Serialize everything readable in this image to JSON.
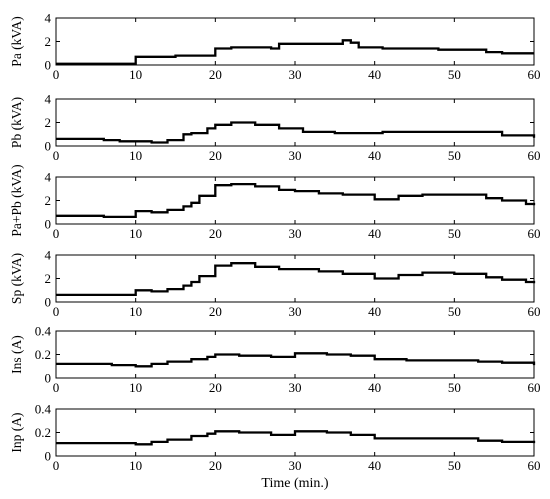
{
  "chart_data": [
    {
      "type": "line",
      "ylabel": "Pa (kVA)",
      "xlabel": "",
      "xlim": [
        0,
        60
      ],
      "ylim": [
        0,
        4
      ],
      "xticks": [
        "0",
        "10",
        "20",
        "30",
        "40",
        "50",
        "60"
      ],
      "yticks": [
        "0",
        "2",
        "4"
      ],
      "x": [
        0,
        9,
        10,
        14,
        15,
        20,
        22,
        27,
        28,
        34,
        36,
        37,
        38,
        41,
        46,
        48,
        54,
        56,
        60
      ],
      "y": [
        0.1,
        0.1,
        0.7,
        0.7,
        0.8,
        1.4,
        1.5,
        1.4,
        1.8,
        1.8,
        2.1,
        1.9,
        1.5,
        1.4,
        1.4,
        1.3,
        1.1,
        1.0,
        1.0
      ]
    },
    {
      "type": "line",
      "ylabel": "Pb (kVA)",
      "xlabel": "",
      "xlim": [
        0,
        60
      ],
      "ylim": [
        0,
        4
      ],
      "xticks": [
        "0",
        "10",
        "20",
        "30",
        "40",
        "50",
        "60"
      ],
      "yticks": [
        "0",
        "2",
        "4"
      ],
      "x": [
        0,
        6,
        8,
        12,
        14,
        16,
        17,
        19,
        20,
        22,
        25,
        28,
        31,
        35,
        41,
        50,
        56,
        60
      ],
      "y": [
        0.6,
        0.5,
        0.4,
        0.3,
        0.5,
        1.0,
        1.1,
        1.5,
        1.8,
        2.0,
        1.8,
        1.5,
        1.2,
        1.1,
        1.2,
        1.2,
        0.9,
        0.7
      ]
    },
    {
      "type": "line",
      "ylabel": "Pa+Pb (kVA)",
      "xlabel": "",
      "xlim": [
        0,
        60
      ],
      "ylim": [
        0,
        4
      ],
      "xticks": [
        "0",
        "10",
        "20",
        "30",
        "40",
        "50",
        "60"
      ],
      "yticks": [
        "0",
        "2",
        "4"
      ],
      "x": [
        0,
        6,
        8,
        10,
        12,
        14,
        16,
        17,
        18,
        20,
        22,
        25,
        28,
        30,
        33,
        36,
        40,
        43,
        46,
        50,
        54,
        56,
        59,
        60
      ],
      "y": [
        0.7,
        0.6,
        0.6,
        1.1,
        1.0,
        1.2,
        1.5,
        1.8,
        2.4,
        3.3,
        3.4,
        3.2,
        2.9,
        2.8,
        2.6,
        2.5,
        2.1,
        2.4,
        2.5,
        2.5,
        2.2,
        2.0,
        1.7,
        1.6
      ]
    },
    {
      "type": "line",
      "ylabel": "Sp (kVA)",
      "xlabel": "",
      "xlim": [
        0,
        60
      ],
      "ylim": [
        0,
        4
      ],
      "xticks": [
        "0",
        "10",
        "20",
        "30",
        "40",
        "50",
        "60"
      ],
      "yticks": [
        "0",
        "2",
        "4"
      ],
      "x": [
        0,
        6,
        8,
        10,
        12,
        14,
        16,
        17,
        18,
        20,
        22,
        25,
        28,
        30,
        33,
        36,
        40,
        43,
        46,
        50,
        54,
        56,
        59,
        60
      ],
      "y": [
        0.6,
        0.6,
        0.6,
        1.0,
        0.9,
        1.1,
        1.4,
        1.7,
        2.2,
        3.1,
        3.3,
        3.0,
        2.8,
        2.8,
        2.6,
        2.4,
        2.0,
        2.3,
        2.5,
        2.4,
        2.1,
        1.9,
        1.7,
        1.6
      ]
    },
    {
      "type": "line",
      "ylabel": "Ins (A)",
      "xlabel": "",
      "xlim": [
        0,
        60
      ],
      "ylim": [
        0,
        0.4
      ],
      "xticks": [
        "0",
        "10",
        "20",
        "30",
        "40",
        "50",
        "60"
      ],
      "yticks": [
        "0",
        "0.2",
        "0.4"
      ],
      "x": [
        0,
        4,
        7,
        10,
        12,
        14,
        17,
        19,
        20,
        23,
        27,
        30,
        34,
        37,
        40,
        44,
        49,
        53,
        56,
        60
      ],
      "y": [
        0.12,
        0.12,
        0.11,
        0.1,
        0.12,
        0.14,
        0.16,
        0.18,
        0.2,
        0.19,
        0.18,
        0.21,
        0.2,
        0.19,
        0.16,
        0.15,
        0.15,
        0.14,
        0.13,
        0.11
      ]
    },
    {
      "type": "line",
      "ylabel": "Inp (A)",
      "xlabel": "Time (min.)",
      "xlim": [
        0,
        60
      ],
      "ylim": [
        0,
        0.4
      ],
      "xticks": [
        "0",
        "10",
        "20",
        "30",
        "40",
        "50",
        "60"
      ],
      "yticks": [
        "0",
        "0.2",
        "0.4"
      ],
      "x": [
        0,
        4,
        7,
        10,
        12,
        14,
        17,
        19,
        20,
        23,
        27,
        30,
        34,
        37,
        40,
        44,
        49,
        53,
        56,
        60
      ],
      "y": [
        0.11,
        0.11,
        0.11,
        0.1,
        0.12,
        0.14,
        0.17,
        0.19,
        0.21,
        0.2,
        0.18,
        0.21,
        0.2,
        0.18,
        0.15,
        0.15,
        0.15,
        0.13,
        0.12,
        0.11
      ]
    }
  ]
}
